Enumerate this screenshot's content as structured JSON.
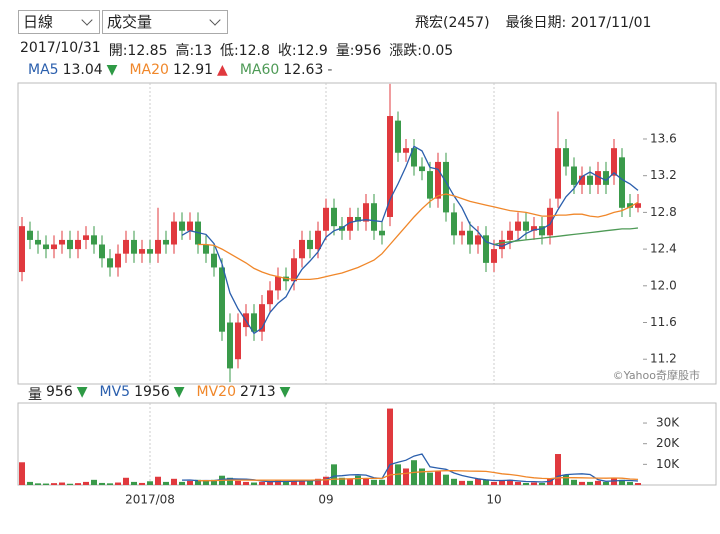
{
  "controls": {
    "period": "日線",
    "indicator": "成交量"
  },
  "header": {
    "stock": "飛宏(2457)",
    "last_date": "最後日期: 2017/11/01",
    "date": "2017/10/31",
    "open": "開:12.85",
    "high": "高:13",
    "low": "低:12.8",
    "close": "收:12.9",
    "volume": "量:956",
    "change": "漲跌:0.05"
  },
  "credit": "©Yahoo奇摩股市",
  "chart_data": [
    {
      "type": "candlestick",
      "up_color": "#e0393e",
      "down_color": "#3a9a4a",
      "categories": [
        null,
        null,
        null,
        null,
        null,
        null,
        null,
        null,
        null,
        null,
        null,
        null,
        null,
        null,
        null,
        null,
        "2017/08",
        null,
        null,
        null,
        null,
        null,
        null,
        null,
        null,
        null,
        null,
        null,
        null,
        null,
        null,
        null,
        null,
        null,
        null,
        null,
        null,
        null,
        "09",
        null,
        null,
        null,
        null,
        null,
        null,
        null,
        null,
        null,
        null,
        null,
        null,
        null,
        null,
        null,
        null,
        null,
        null,
        null,
        null,
        "10",
        null,
        null,
        null,
        null,
        null,
        null,
        null,
        null,
        null,
        null,
        null,
        null,
        null,
        null,
        null,
        null,
        null,
        null
      ],
      "open": [
        12.15,
        12.6,
        12.5,
        12.45,
        12.4,
        12.45,
        12.5,
        12.4,
        12.5,
        12.55,
        12.45,
        12.3,
        12.2,
        12.35,
        12.5,
        12.35,
        12.4,
        12.35,
        12.5,
        12.45,
        12.7,
        12.6,
        12.7,
        12.45,
        12.35,
        12.2,
        11.6,
        11.2,
        11.55,
        11.7,
        11.5,
        11.8,
        11.95,
        12.1,
        12.05,
        12.3,
        12.5,
        12.4,
        12.6,
        12.85,
        12.65,
        12.6,
        12.75,
        12.7,
        12.9,
        12.6,
        12.75,
        13.8,
        13.45,
        13.5,
        13.3,
        13.25,
        12.95,
        13.35,
        12.8,
        12.55,
        12.6,
        12.45,
        12.55,
        12.25,
        12.4,
        12.5,
        12.6,
        12.7,
        12.6,
        12.65,
        12.55,
        12.95,
        13.5,
        13.3,
        13.1,
        13.2,
        13.1,
        13.25,
        13.2,
        13.4,
        12.9,
        12.85
      ],
      "high": [
        12.75,
        12.7,
        12.6,
        12.55,
        12.55,
        12.6,
        12.6,
        12.6,
        12.65,
        12.65,
        12.55,
        12.4,
        12.45,
        12.6,
        12.6,
        12.5,
        12.5,
        12.85,
        12.6,
        12.8,
        12.8,
        12.8,
        12.8,
        12.55,
        12.45,
        12.3,
        11.7,
        11.7,
        11.8,
        11.8,
        11.9,
        12.05,
        12.2,
        12.2,
        12.4,
        12.6,
        12.6,
        12.7,
        12.95,
        12.95,
        12.75,
        12.85,
        12.85,
        13.0,
        13.0,
        12.7,
        14.2,
        13.9,
        13.6,
        13.6,
        13.4,
        13.35,
        13.45,
        13.45,
        12.9,
        12.7,
        12.7,
        12.65,
        12.65,
        12.5,
        12.6,
        12.7,
        12.8,
        12.8,
        12.75,
        12.75,
        12.95,
        13.9,
        13.6,
        13.4,
        13.3,
        13.3,
        13.35,
        13.35,
        13.6,
        13.5,
        13.0,
        13.0
      ],
      "low": [
        12.05,
        12.4,
        12.35,
        12.3,
        12.3,
        12.35,
        12.3,
        12.3,
        12.4,
        12.35,
        12.2,
        12.1,
        12.1,
        12.25,
        12.25,
        12.25,
        12.25,
        12.25,
        12.35,
        12.35,
        12.5,
        12.5,
        12.35,
        12.25,
        12.1,
        11.4,
        10.95,
        11.1,
        11.45,
        11.4,
        11.4,
        11.7,
        11.85,
        11.95,
        11.95,
        12.2,
        12.3,
        12.3,
        12.5,
        12.55,
        12.5,
        12.5,
        12.6,
        12.6,
        12.5,
        12.45,
        12.65,
        13.35,
        13.35,
        13.2,
        13.15,
        12.85,
        12.85,
        12.7,
        12.45,
        12.45,
        12.35,
        12.35,
        12.15,
        12.15,
        12.3,
        12.4,
        12.5,
        12.5,
        12.5,
        12.45,
        12.45,
        12.85,
        13.2,
        13.0,
        13.0,
        13.0,
        13.0,
        13.0,
        13.1,
        12.75,
        12.75,
        12.8
      ],
      "close": [
        12.65,
        12.5,
        12.45,
        12.4,
        12.45,
        12.5,
        12.4,
        12.5,
        12.55,
        12.45,
        12.3,
        12.2,
        12.35,
        12.5,
        12.35,
        12.4,
        12.35,
        12.5,
        12.45,
        12.7,
        12.6,
        12.7,
        12.45,
        12.35,
        12.2,
        11.5,
        11.1,
        11.6,
        11.7,
        11.5,
        11.8,
        11.95,
        12.1,
        12.05,
        12.3,
        12.5,
        12.4,
        12.6,
        12.85,
        12.65,
        12.6,
        12.75,
        12.7,
        12.9,
        12.6,
        12.55,
        13.85,
        13.45,
        13.5,
        13.3,
        13.25,
        12.95,
        13.35,
        12.8,
        12.55,
        12.6,
        12.45,
        12.55,
        12.25,
        12.4,
        12.5,
        12.6,
        12.7,
        12.6,
        12.65,
        12.55,
        12.85,
        13.5,
        13.3,
        13.1,
        13.2,
        13.1,
        13.25,
        13.1,
        13.5,
        12.85,
        12.85,
        12.9
      ],
      "series": [
        {
          "name": "MA5",
          "color": "#2b5fad",
          "last": 13.04,
          "trend": "▼",
          "trend_color": "#2e9a45",
          "values": [
            null,
            null,
            null,
            null,
            null,
            null,
            null,
            null,
            null,
            null,
            null,
            null,
            null,
            null,
            null,
            null,
            null,
            null,
            null,
            null,
            12.55,
            12.6,
            12.58,
            12.56,
            12.46,
            12.24,
            11.92,
            11.75,
            11.62,
            11.48,
            11.54,
            11.71,
            11.81,
            11.88,
            12.04,
            12.18,
            12.27,
            12.37,
            12.53,
            12.6,
            12.63,
            12.69,
            12.71,
            12.72,
            12.71,
            12.7,
            12.94,
            13.11,
            13.3,
            13.52,
            13.47,
            13.29,
            13.27,
            13.13,
            12.98,
            12.85,
            12.67,
            12.59,
            12.48,
            12.45,
            12.43,
            12.47,
            12.5,
            12.57,
            12.61,
            12.62,
            12.67,
            12.83,
            12.97,
            13.06,
            13.19,
            13.24,
            13.19,
            13.15,
            13.23,
            13.16,
            13.11,
            13.04
          ]
        },
        {
          "name": "MA20",
          "color": "#f0872a",
          "last": 12.91,
          "trend": "▲",
          "trend_color": "#e0393e",
          "values": [
            null,
            null,
            null,
            null,
            null,
            null,
            null,
            null,
            null,
            null,
            null,
            null,
            null,
            null,
            null,
            null,
            null,
            null,
            null,
            null,
            null,
            null,
            12.45,
            12.45,
            12.44,
            12.4,
            12.35,
            12.3,
            12.25,
            12.19,
            12.15,
            12.12,
            12.1,
            12.08,
            12.07,
            12.07,
            12.07,
            12.08,
            12.1,
            12.12,
            12.14,
            12.17,
            12.2,
            12.24,
            12.28,
            12.35,
            12.45,
            12.55,
            12.65,
            12.75,
            12.84,
            12.92,
            12.98,
            13.0,
            12.98,
            12.95,
            12.92,
            12.9,
            12.88,
            12.86,
            12.84,
            12.82,
            12.81,
            12.8,
            12.78,
            12.76,
            12.76,
            12.77,
            12.77,
            12.78,
            12.78,
            12.76,
            12.75,
            12.77,
            12.8,
            12.82,
            12.86,
            12.91
          ]
        },
        {
          "name": "MA60",
          "color": "#4e9a56",
          "last": 12.63,
          "trend": "-",
          "trend_color": "#555555",
          "values": [
            null,
            null,
            null,
            null,
            null,
            null,
            null,
            null,
            null,
            null,
            null,
            null,
            null,
            null,
            null,
            null,
            null,
            null,
            null,
            null,
            null,
            null,
            null,
            null,
            null,
            null,
            null,
            null,
            null,
            null,
            null,
            null,
            null,
            null,
            null,
            null,
            null,
            null,
            null,
            null,
            null,
            null,
            null,
            null,
            null,
            null,
            null,
            null,
            null,
            null,
            null,
            null,
            null,
            null,
            null,
            null,
            null,
            null,
            null,
            12.45,
            12.47,
            12.48,
            12.49,
            12.5,
            12.51,
            12.52,
            12.53,
            12.54,
            12.55,
            12.56,
            12.57,
            12.58,
            12.59,
            12.6,
            12.61,
            12.62,
            12.62,
            12.63
          ]
        }
      ],
      "ylim": [
        10.93,
        14.21
      ],
      "yticks": [
        11.2,
        11.6,
        {
          "value": 12,
          "label": "12.0"
        },
        12.4,
        12.8,
        13.2,
        13.6
      ]
    },
    {
      "type": "bar",
      "name": "量",
      "last": 956,
      "trend": "▼",
      "trend_color": "#2e9a45",
      "values": [
        11000,
        1500,
        800,
        700,
        900,
        1200,
        600,
        900,
        1500,
        2500,
        1000,
        800,
        1200,
        3500,
        1500,
        1000,
        1800,
        4000,
        1500,
        3000,
        1500,
        2000,
        2500,
        2000,
        2500,
        4500,
        3500,
        2000,
        1500,
        1200,
        1500,
        1800,
        2500,
        1500,
        1800,
        2500,
        2000,
        3000,
        4000,
        10000,
        3500,
        3000,
        4500,
        3000,
        2500,
        2500,
        37000,
        10000,
        8000,
        12000,
        8000,
        6000,
        7000,
        5000,
        3000,
        2000,
        2000,
        3000,
        2500,
        1500,
        2000,
        2500,
        1500,
        1000,
        1200,
        1000,
        3000,
        15000,
        5000,
        2500,
        1500,
        1500,
        2000,
        1500,
        3500,
        2500,
        1500,
        956
      ],
      "series": [
        {
          "name": "MV5",
          "color": "#2b5fad",
          "last": 1956,
          "trend": "▼",
          "trend_color": "#2e9a45",
          "values": [
            null,
            null,
            null,
            null,
            null,
            null,
            null,
            null,
            null,
            null,
            null,
            null,
            null,
            null,
            null,
            null,
            null,
            null,
            null,
            null,
            2360,
            2400,
            2100,
            2200,
            2100,
            2700,
            3000,
            2900,
            2800,
            2540,
            1940,
            1600,
            1700,
            1700,
            1820,
            1960,
            2060,
            2160,
            2660,
            4300,
            4500,
            4900,
            5000,
            4800,
            3500,
            3100,
            9900,
            11000,
            12000,
            14000,
            15000,
            8800,
            8200,
            7600,
            5800,
            4600,
            3800,
            3000,
            2500,
            2200,
            2200,
            2300,
            2000,
            1700,
            1640,
            1440,
            1740,
            4240,
            5040,
            5300,
            5400,
            5100,
            2600,
            1800,
            2000,
            2200,
            2200,
            1956
          ]
        },
        {
          "name": "MV20",
          "color": "#f0872a",
          "last": 2713,
          "trend": "▼",
          "trend_color": "#2e9a45",
          "values": [
            null,
            null,
            null,
            null,
            null,
            null,
            null,
            null,
            null,
            null,
            null,
            null,
            null,
            null,
            null,
            null,
            null,
            null,
            null,
            null,
            null,
            null,
            2100,
            2100,
            2150,
            2250,
            2350,
            2350,
            2350,
            2300,
            2300,
            2300,
            2300,
            2300,
            2300,
            2350,
            2350,
            2400,
            2500,
            2800,
            2900,
            3000,
            3100,
            3200,
            3200,
            3200,
            4900,
            5300,
            5600,
            6100,
            6400,
            6600,
            6800,
            6900,
            6900,
            6850,
            6750,
            6700,
            6600,
            6050,
            5400,
            5100,
            4600,
            3900,
            3500,
            3200,
            3100,
            3500,
            3600,
            3550,
            3500,
            3400,
            3350,
            3300,
            3400,
            3300,
            2900,
            2713
          ]
        }
      ],
      "ylim": [
        0,
        39700
      ],
      "yticks": [
        {
          "value": 10000,
          "label": "10K"
        },
        {
          "value": 20000,
          "label": "20K"
        },
        {
          "value": 30000,
          "label": "30K"
        }
      ]
    }
  ]
}
